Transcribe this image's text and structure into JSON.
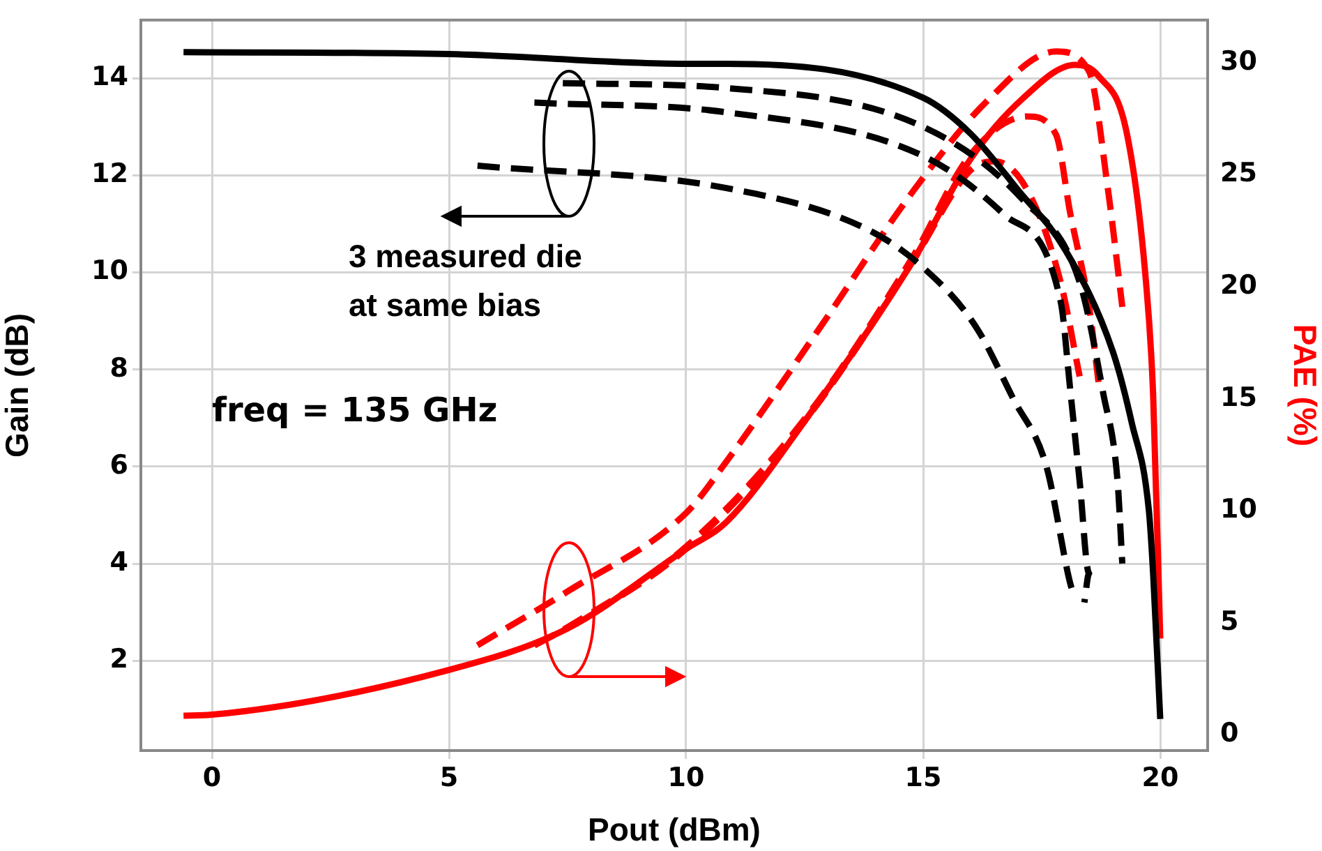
{
  "chart_data": {
    "type": "line",
    "xlabel": "Pout (dBm)",
    "ylabel": "Gain (dB)",
    "y2label": "PAE (%)",
    "xlim": [
      -1.5,
      21
    ],
    "xticks": [
      0,
      5,
      10,
      15,
      20
    ],
    "ylim": [
      0.15,
      15.2
    ],
    "yticks": [
      2,
      4,
      6,
      8,
      10,
      12,
      14
    ],
    "y2lim": [
      -0.7,
      31.9
    ],
    "y2ticks": [
      0,
      5,
      10,
      15,
      20,
      25,
      30
    ],
    "grid": true,
    "legend": false,
    "marker": "none",
    "annotations": [
      "3 measured die\nat same bias",
      "freq = 135 GHz"
    ],
    "series": [
      {
        "color": "#000000",
        "line_style": "solid",
        "x": [
          -0.6,
          5,
          10,
          10.85,
          15,
          16,
          17,
          18,
          19,
          19.4,
          19.76,
          19.85,
          20
        ],
        "values": [
          14.54,
          14.5,
          14.3,
          14.3,
          13.6,
          12.86,
          11.7,
          10.46,
          8.37,
          6.9,
          5.1,
          3.8,
          0.8
        ]
      },
      {
        "color": "#000000",
        "line_style": "dashed",
        "x": [
          7.4,
          10.85,
          15,
          17.1,
          18.3,
          18.8,
          19.1,
          19.2
        ],
        "values": [
          13.9,
          13.8,
          13.0,
          11.5,
          9.8,
          7.5,
          5.7,
          4.0
        ]
      },
      {
        "color": "#000000",
        "line_style": "dashed",
        "x": [
          6.8,
          10.85,
          15,
          16.7,
          17.9,
          18.1,
          18.3,
          18.5,
          18.4
        ],
        "values": [
          13.5,
          13.3,
          12.4,
          11.2,
          9.4,
          7.6,
          5.7,
          3.8,
          3.2
        ]
      },
      {
        "color": "#000000",
        "line_style": "dashed",
        "x": [
          5.6,
          10.85,
          13.8,
          15,
          16.1,
          16.9,
          17.6,
          18.1,
          18.2
        ],
        "values": [
          12.2,
          11.74,
          10.9,
          10.1,
          8.9,
          7.4,
          6.0,
          3.6,
          3.3
        ]
      },
      {
        "color": "#ff0000",
        "line_style": "solid",
        "axis": "y2",
        "x": [
          -0.6,
          0,
          5,
          7.5,
          10,
          10.85,
          12.5,
          14.8,
          16,
          17.1,
          18.2,
          18.7,
          19.3,
          19.7,
          19.85,
          20
        ],
        "values": [
          0.86,
          0.9,
          2.9,
          4.75,
          8.3,
          9.5,
          14,
          21.2,
          25.7,
          28.4,
          29.9,
          29.4,
          26.8,
          20.2,
          15.2,
          4.3
        ]
      },
      {
        "color": "#ff0000",
        "line_style": "dashed",
        "axis": "y2",
        "x": [
          5.6,
          7.5,
          10,
          10.85,
          12.8,
          14.8,
          16.4,
          17.8,
          18.5,
          18.9,
          19.2
        ],
        "values": [
          4.0,
          6.4,
          9.9,
          12.2,
          18.1,
          24.3,
          28.4,
          30.5,
          29.6,
          24.3,
          19.1
        ]
      },
      {
        "color": "#ff0000",
        "line_style": "dashed",
        "axis": "y2",
        "x": [
          6.8,
          7.5,
          10,
          12.5,
          14.8,
          16,
          17.2,
          17.8,
          18.1,
          18.5,
          18.7
        ],
        "values": [
          4.0,
          4.8,
          8.4,
          14.1,
          21.4,
          25.9,
          27.6,
          26.8,
          23.3,
          19.1,
          15.7
        ]
      },
      {
        "color": "#ff0000",
        "line_style": "dashed",
        "axis": "y2",
        "x": [
          6.8,
          7.5,
          10,
          12.5,
          14.8,
          16,
          16.5,
          17.2,
          17.9,
          18.3
        ],
        "values": [
          4.0,
          4.8,
          8.3,
          14.0,
          21.2,
          25.2,
          25.6,
          24.3,
          20.2,
          16.0
        ]
      }
    ]
  }
}
